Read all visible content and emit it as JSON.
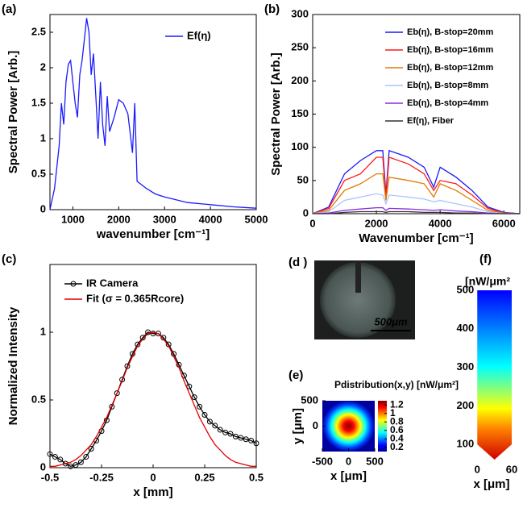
{
  "chart_data": [
    {
      "type": "line",
      "panel_label": "(a)",
      "xlabel": "wavenumber [cm⁻¹]",
      "ylabel": "Spectral Power [Arb.]",
      "x": [
        500,
        600,
        700,
        750,
        800,
        850,
        900,
        950,
        1000,
        1050,
        1100,
        1150,
        1200,
        1250,
        1300,
        1350,
        1400,
        1450,
        1500,
        1550,
        1600,
        1650,
        1700,
        1750,
        1800,
        1900,
        2000,
        2100,
        2200,
        2300,
        2350,
        2400,
        2600,
        2800,
        3000,
        3500,
        4000,
        4500,
        5000
      ],
      "series": [
        {
          "name": "Ef(η)",
          "color": "#1a1aff",
          "values": [
            0,
            0.3,
            0.9,
            1.5,
            1.2,
            1.8,
            2.05,
            2.1,
            1.8,
            1.5,
            1.3,
            1.9,
            2.1,
            2.4,
            2.7,
            2.5,
            1.9,
            2.2,
            1.6,
            1.0,
            1.8,
            1.2,
            0.9,
            1.6,
            1.1,
            1.3,
            1.55,
            1.5,
            1.35,
            0.8,
            1.5,
            0.4,
            0.3,
            0.22,
            0.18,
            0.1,
            0.07,
            0.04,
            0.02
          ]
        }
      ],
      "xlim": [
        500,
        5000
      ],
      "xticks": [
        1000,
        2000,
        3000,
        4000,
        5000
      ],
      "ylim": [
        0,
        2.75
      ],
      "yticks": [
        0,
        0.5,
        1,
        1.5,
        2,
        2.5
      ]
    },
    {
      "type": "line",
      "panel_label": "(b)",
      "xlabel": "Wavenumber [cm⁻¹]",
      "ylabel": "Spectral Power [Arb.]",
      "x": [
        0,
        500,
        1000,
        1500,
        2000,
        2200,
        2300,
        2400,
        3000,
        3500,
        3800,
        4000,
        4500,
        5000,
        5500,
        6000,
        6500
      ],
      "series": [
        {
          "name": "Eb(η), B-stop=20mm",
          "color": "#1a1aff",
          "values": [
            0,
            10,
            60,
            80,
            95,
            95,
            30,
            95,
            85,
            70,
            40,
            70,
            55,
            35,
            10,
            2,
            0
          ]
        },
        {
          "name": "Eb(η), B-stop=16mm",
          "color": "#ff1a1a",
          "values": [
            0,
            8,
            50,
            60,
            85,
            85,
            25,
            85,
            75,
            60,
            35,
            50,
            45,
            28,
            8,
            1,
            0
          ]
        },
        {
          "name": "Eb(η), B-stop=12mm",
          "color": "#e07b00",
          "values": [
            0,
            5,
            35,
            45,
            60,
            60,
            20,
            55,
            50,
            45,
            25,
            45,
            35,
            20,
            5,
            1,
            0
          ]
        },
        {
          "name": "Eb(η), B-stop=8mm",
          "color": "#a8c4ff",
          "values": [
            0,
            3,
            20,
            25,
            30,
            28,
            15,
            28,
            25,
            22,
            18,
            20,
            15,
            10,
            3,
            0,
            0
          ]
        },
        {
          "name": "Eb(η), B-stop=4mm",
          "color": "#8a2be2",
          "values": [
            0,
            1,
            5,
            7,
            9,
            9,
            5,
            8,
            7,
            6,
            5,
            6,
            4,
            3,
            1,
            0,
            0
          ]
        },
        {
          "name": "Ef(η), Fiber",
          "color": "#333333",
          "values": [
            0,
            0,
            2,
            3,
            3,
            3,
            2,
            3,
            3,
            2,
            2,
            2,
            1,
            1,
            0,
            0,
            0
          ]
        }
      ],
      "xlim": [
        0,
        6500
      ],
      "xticks": [
        0,
        2000,
        4000,
        6000
      ],
      "ylim": [
        0,
        300
      ],
      "yticks": [
        0,
        50,
        100,
        150,
        200,
        250,
        300
      ]
    },
    {
      "type": "line",
      "panel_label": "(c)",
      "xlabel": "x [mm]",
      "ylabel": "Normalized Intensity",
      "x": [
        -0.5,
        -0.475,
        -0.45,
        -0.425,
        -0.4,
        -0.375,
        -0.35,
        -0.325,
        -0.3,
        -0.275,
        -0.25,
        -0.225,
        -0.2,
        -0.175,
        -0.15,
        -0.125,
        -0.1,
        -0.075,
        -0.05,
        -0.025,
        0,
        0.025,
        0.05,
        0.075,
        0.1,
        0.125,
        0.15,
        0.175,
        0.2,
        0.225,
        0.25,
        0.275,
        0.3,
        0.325,
        0.35,
        0.375,
        0.4,
        0.425,
        0.45,
        0.475,
        0.5
      ],
      "series": [
        {
          "name": "IR Camera",
          "color": "#000000",
          "marker": "circle",
          "values": [
            0.1,
            0.08,
            0.06,
            0.03,
            0.01,
            0.02,
            0.04,
            0.08,
            0.14,
            0.2,
            0.27,
            0.35,
            0.45,
            0.55,
            0.65,
            0.75,
            0.84,
            0.91,
            0.96,
            1.0,
            0.99,
            0.99,
            0.96,
            0.91,
            0.84,
            0.76,
            0.68,
            0.6,
            0.52,
            0.45,
            0.39,
            0.34,
            0.31,
            0.28,
            0.26,
            0.25,
            0.23,
            0.22,
            0.21,
            0.2,
            0.18
          ]
        },
        {
          "name": "Fit (σ = 0.365Rcore)",
          "color": "#e00000",
          "values": [
            0.01,
            0.01,
            0.02,
            0.03,
            0.04,
            0.06,
            0.09,
            0.13,
            0.17,
            0.23,
            0.3,
            0.37,
            0.46,
            0.55,
            0.64,
            0.74,
            0.82,
            0.9,
            0.95,
            0.99,
            1,
            0.99,
            0.95,
            0.9,
            0.82,
            0.74,
            0.64,
            0.55,
            0.46,
            0.37,
            0.3,
            0.23,
            0.17,
            0.13,
            0.09,
            0.06,
            0.04,
            0.03,
            0.02,
            0.01,
            0.01
          ]
        }
      ],
      "xlim": [
        -0.5,
        0.5
      ],
      "xticks": [
        -0.5,
        -0.25,
        0,
        0.25,
        0.5
      ],
      "ylim": [
        0,
        1.5
      ],
      "yticks": [
        0,
        0.5,
        1
      ]
    },
    {
      "type": "image",
      "panel_label": "(d )",
      "scale_label": "500μm"
    },
    {
      "type": "heatmap",
      "panel_label": "(e)",
      "title": "Pdistribution(x,y) [nW/μm²]",
      "xlabel": "x [μm]",
      "ylabel": "y [μm]",
      "xlim": [
        -500,
        500
      ],
      "xticks": [
        -500,
        0,
        500
      ],
      "ylim": [
        -500,
        500
      ],
      "yticks": [
        0,
        500
      ],
      "clim": [
        0.1,
        1.3
      ],
      "cticks": [
        0.2,
        0.4,
        0.6,
        0.8,
        1,
        1.2
      ]
    },
    {
      "type": "colorbar",
      "panel_label": "(f)",
      "title": "[nW/μm²",
      "xlabel": "x [μm]",
      "xlim": [
        -20,
        60
      ],
      "xticks": [
        0,
        60
      ],
      "ylim": [
        50,
        500
      ],
      "yticks": [
        100,
        200,
        300,
        400,
        500
      ]
    }
  ]
}
